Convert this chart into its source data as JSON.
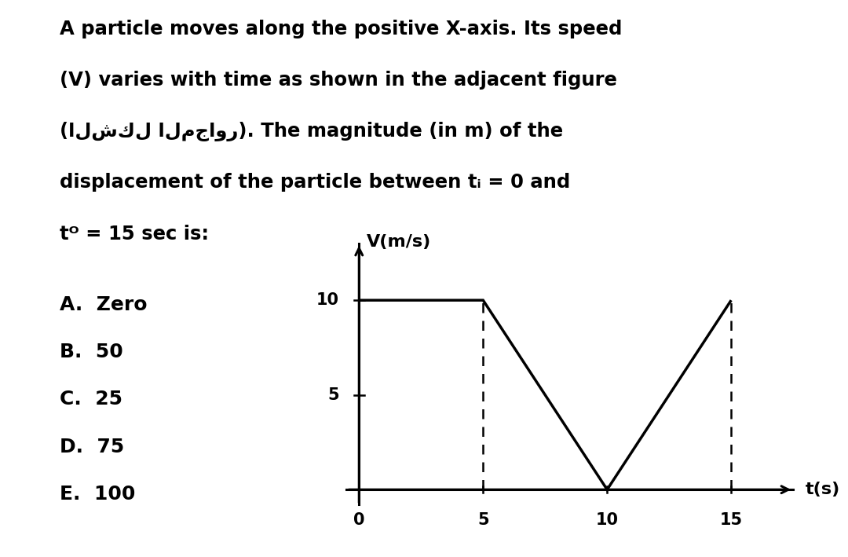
{
  "background_color": "#ffffff",
  "text_lines": [
    "A particle moves along the positive X-axis. Its speed",
    "(V) varies with time as shown in the adjacent figure",
    "(الشكل المجاور). The magnitude (in m) of the",
    "displacement of the particle between tᵢ = 0 and",
    "tᴼ = 15 sec is:"
  ],
  "options": [
    "A.  Zero",
    "B.  50",
    "C.  25",
    "D.  75",
    "E.  100"
  ],
  "graph": {
    "t_values": [
      0,
      5,
      10,
      15
    ],
    "v_values": [
      10,
      10,
      0,
      10
    ],
    "xlabel": "t(s)",
    "ylabel": "V(m/s)",
    "xticks": [
      0,
      5,
      10,
      15
    ],
    "yticks": [
      5,
      10
    ],
    "xlim": [
      -0.8,
      18
    ],
    "ylim": [
      -1.5,
      13.5
    ],
    "line_color": "#000000",
    "dashed_color": "#000000",
    "axis_color": "#000000"
  }
}
